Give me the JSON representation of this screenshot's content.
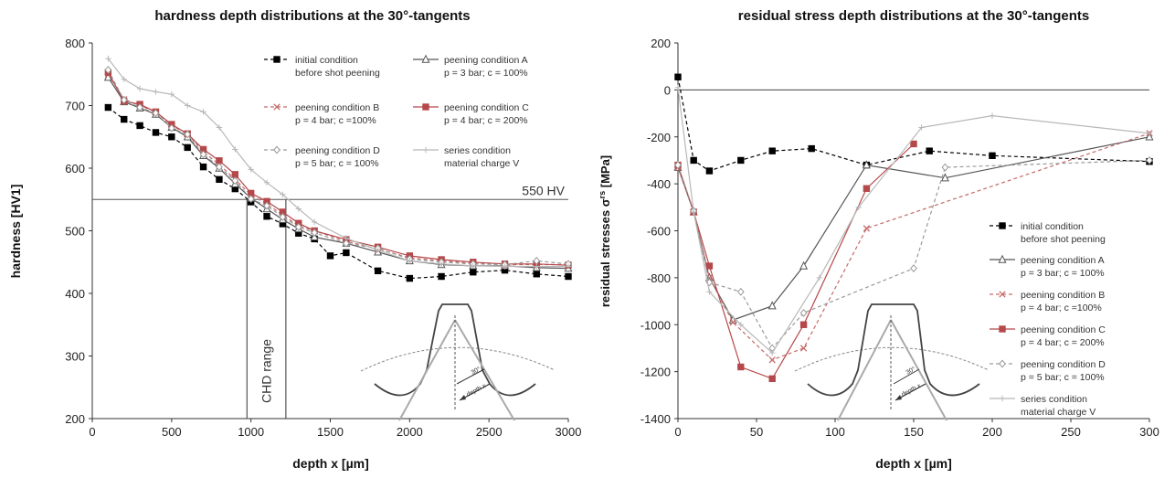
{
  "chart_data": [
    {
      "type": "line",
      "title": "hardness depth distributions at the 30°-tangents",
      "xlabel": "depth x [µm]",
      "ylabel": "hardness [HV1]",
      "xlim": [
        0,
        3000
      ],
      "ylim": [
        200,
        800
      ],
      "xticks": [
        0,
        500,
        1000,
        1500,
        2000,
        2500,
        3000
      ],
      "yticks": [
        200,
        300,
        400,
        500,
        600,
        700,
        800
      ],
      "grid": false,
      "legend_position": "top-right",
      "annotations": {
        "hv_limit_label": "550 HV",
        "chd_label": "CHD range",
        "hv_limit": 550,
        "chd_range": [
          975,
          1220
        ]
      },
      "series": [
        {
          "name": "initial condition\nbefore shot peening",
          "color": "#000000",
          "style": "dashed",
          "marker": "square-filled",
          "x": [
            100,
            200,
            300,
            400,
            500,
            600,
            700,
            800,
            900,
            1000,
            1100,
            1200,
            1300,
            1400,
            1500,
            1600,
            1800,
            2000,
            2200,
            2400,
            2600,
            2800,
            3000
          ],
          "y": [
            697,
            678,
            668,
            657,
            650,
            633,
            602,
            582,
            567,
            546,
            523,
            511,
            496,
            487,
            460,
            465,
            436,
            424,
            427,
            434,
            437,
            431,
            427
          ]
        },
        {
          "name": "peening condition A\np = 3 bar; c = 100%",
          "color": "#555555",
          "style": "solid",
          "marker": "triangle-open",
          "x": [
            100,
            200,
            300,
            400,
            500,
            600,
            700,
            800,
            900,
            1000,
            1100,
            1200,
            1300,
            1400,
            1600,
            1800,
            2000,
            2200,
            2400,
            2600,
            2800,
            3000
          ],
          "y": [
            745,
            706,
            696,
            686,
            665,
            650,
            620,
            600,
            575,
            552,
            535,
            518,
            503,
            490,
            480,
            466,
            452,
            446,
            444,
            444,
            441,
            440
          ]
        },
        {
          "name": "peening condition B\np = 4 bar; c =100%",
          "color": "#c56a6a",
          "style": "dashed",
          "marker": "x",
          "x": [
            100,
            200,
            300,
            400,
            500,
            600,
            700,
            800,
            900,
            1000,
            1100,
            1200,
            1300,
            1400,
            1600,
            1800,
            2000,
            2200,
            2400,
            2600,
            2800,
            3000
          ],
          "y": [
            750,
            710,
            700,
            690,
            668,
            655,
            626,
            606,
            582,
            557,
            543,
            525,
            508,
            500,
            483,
            471,
            457,
            452,
            448,
            446,
            446,
            446
          ]
        },
        {
          "name": "peening condition C\np = 4 bar; c = 200%",
          "color": "#b5484a",
          "style": "solid",
          "marker": "square-filled",
          "x": [
            100,
            200,
            300,
            400,
            500,
            600,
            700,
            800,
            900,
            1000,
            1100,
            1200,
            1300,
            1400,
            1600,
            1800,
            2000,
            2200,
            2400,
            2600,
            2800,
            3000
          ],
          "y": [
            753,
            707,
            702,
            690,
            670,
            655,
            630,
            612,
            590,
            560,
            547,
            530,
            512,
            500,
            486,
            474,
            460,
            454,
            450,
            447,
            447,
            445
          ]
        },
        {
          "name": "peening condition D\np = 5 bar; c = 100%",
          "color": "#9a9a9a",
          "style": "dashed",
          "marker": "diamond-open",
          "x": [
            100,
            200,
            300,
            400,
            500,
            600,
            700,
            800,
            900,
            1000,
            1100,
            1200,
            1300,
            1400,
            1600,
            1800,
            2000,
            2200,
            2400,
            2600,
            2800,
            3000
          ],
          "y": [
            757,
            709,
            697,
            688,
            664,
            654,
            622,
            602,
            580,
            551,
            540,
            522,
            506,
            497,
            480,
            472,
            455,
            450,
            447,
            446,
            452,
            447
          ]
        },
        {
          "name": "series condition\nmaterial charge V",
          "color": "#b8b8b8",
          "style": "solid",
          "marker": "plus",
          "x": [
            100,
            200,
            300,
            400,
            500,
            600,
            700,
            800,
            900,
            1000,
            1100,
            1200,
            1300,
            1400,
            1600,
            1800,
            2000,
            2200,
            2400,
            2600,
            2800,
            3000
          ],
          "y": [
            775,
            742,
            727,
            722,
            718,
            700,
            690,
            665,
            630,
            598,
            577,
            558,
            535,
            514,
            488,
            469,
            452,
            447,
            444,
            443,
            443,
            443
          ]
        }
      ]
    },
    {
      "type": "line",
      "title": "residual stress depth distributions at the 30°-tangents",
      "xlabel": "depth x [µm]",
      "ylabel": "residual stresses σ",
      "ylabel_sup": "rs",
      "ylabel_unit": " [MPa]",
      "xlim": [
        0,
        300
      ],
      "ylim": [
        -1400,
        200
      ],
      "xticks": [
        0,
        50,
        100,
        150,
        200,
        250,
        300
      ],
      "yticks": [
        -1400,
        -1200,
        -1000,
        -800,
        -600,
        -400,
        -200,
        0,
        200
      ],
      "grid": false,
      "zero_line": true,
      "legend_position": "bottom-right",
      "series": [
        {
          "name": "initial condition\nbefore shot peening",
          "color": "#000000",
          "style": "dashed",
          "marker": "square-filled",
          "x": [
            0,
            10,
            20,
            40,
            60,
            85,
            120,
            160,
            200,
            300
          ],
          "y": [
            55,
            -300,
            -345,
            -300,
            -260,
            -250,
            -320,
            -260,
            -280,
            -305
          ]
        },
        {
          "name": "peening condition A\np = 3 bar; c = 100%",
          "color": "#555555",
          "style": "solid",
          "marker": "triangle-open",
          "x": [
            0,
            10,
            20,
            35,
            60,
            80,
            120,
            170,
            300
          ],
          "y": [
            -330,
            -520,
            -800,
            -980,
            -920,
            -750,
            -320,
            -375,
            -200
          ]
        },
        {
          "name": "peening condition B\np = 4 bar; c =100%",
          "color": "#c56a6a",
          "style": "dashed",
          "marker": "x",
          "x": [
            0,
            10,
            20,
            35,
            60,
            80,
            120,
            300
          ],
          "y": [
            -330,
            -520,
            -800,
            -990,
            -1150,
            -1100,
            -590,
            -185
          ]
        },
        {
          "name": "peening condition C\np = 4 bar; c = 200%",
          "color": "#b5484a",
          "style": "solid",
          "marker": "square-filled",
          "x": [
            0,
            10,
            20,
            40,
            60,
            80,
            120,
            150
          ],
          "y": [
            -320,
            -520,
            -750,
            -1180,
            -1230,
            -1000,
            -420,
            -230
          ]
        },
        {
          "name": "peening condition D\np = 5 bar; c = 100%",
          "color": "#9a9a9a",
          "style": "dashed",
          "marker": "diamond-open",
          "x": [
            0,
            10,
            20,
            40,
            60,
            80,
            150,
            170,
            300
          ],
          "y": [
            -320,
            -515,
            -820,
            -860,
            -1100,
            -950,
            -760,
            -330,
            -300
          ]
        },
        {
          "name": "series condition\nmaterial charge V",
          "color": "#b8b8b8",
          "style": "solid",
          "marker": "plus",
          "x": [
            0,
            10,
            20,
            40,
            60,
            90,
            115,
            155,
            200,
            300
          ],
          "y": [
            10,
            -520,
            -860,
            -1000,
            -1120,
            -800,
            -500,
            -160,
            -110,
            -185
          ]
        }
      ]
    }
  ]
}
